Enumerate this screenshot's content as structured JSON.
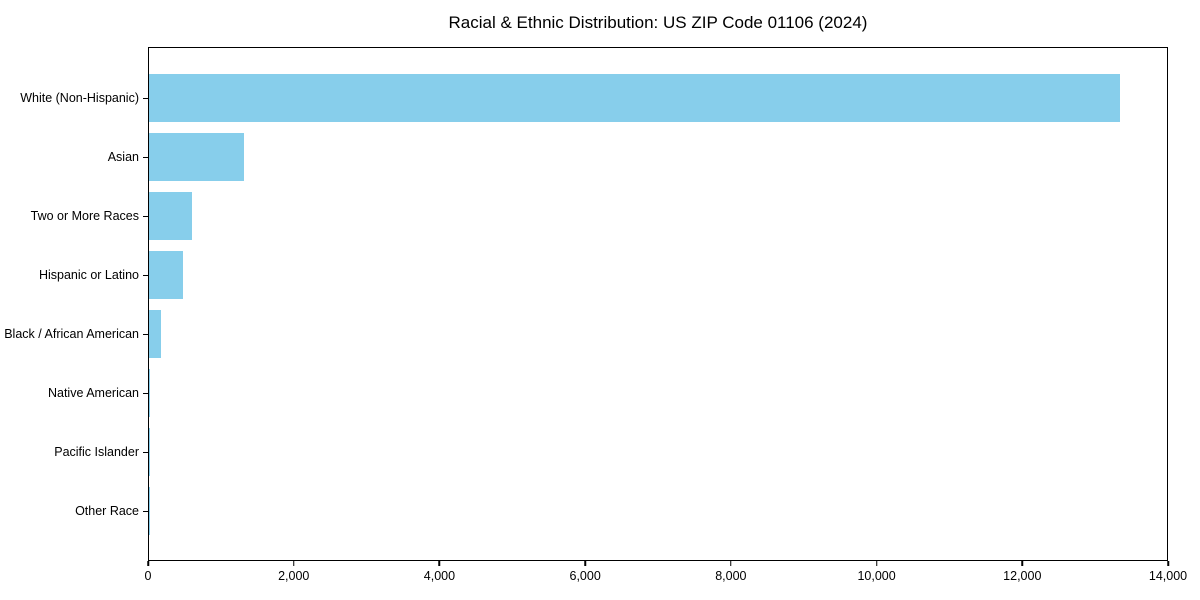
{
  "chart_data": {
    "type": "bar",
    "orientation": "horizontal",
    "title": "Racial & Ethnic Distribution: US ZIP Code 01106 (2024)",
    "categories": [
      "White (Non-Hispanic)",
      "Asian",
      "Two or More Races",
      "Hispanic or Latino",
      "Black / African American",
      "Native American",
      "Pacific Islander",
      "Other Race"
    ],
    "values": [
      13350,
      1300,
      585,
      470,
      165,
      20,
      8,
      4
    ],
    "xlabel": "",
    "ylabel": "",
    "xlim": [
      0,
      14000
    ],
    "x_ticks": [
      0,
      2000,
      4000,
      6000,
      8000,
      10000,
      12000,
      14000
    ],
    "x_tick_labels": [
      "0",
      "2,000",
      "4,000",
      "6,000",
      "8,000",
      "10,000",
      "12,000",
      "14,000"
    ],
    "bar_color": "#87CEEB",
    "background_color": "#ffffff",
    "grid": false,
    "legend": null
  }
}
